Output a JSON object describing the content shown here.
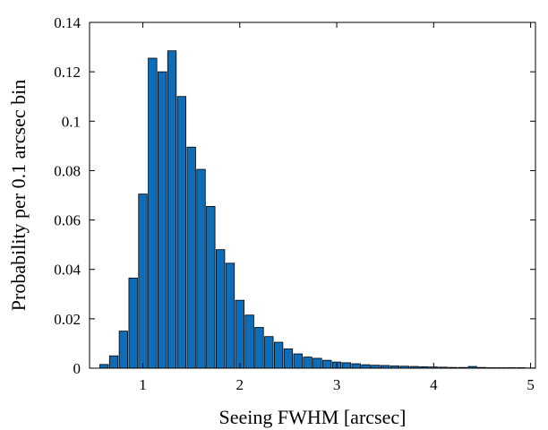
{
  "chart_data": {
    "type": "bar",
    "title": "",
    "xlabel": "Seeing FWHM [arcsec]",
    "ylabel": "Probability per 0.1 arcsec bin",
    "xlim": [
      0.45,
      5.05
    ],
    "ylim": [
      0,
      0.14
    ],
    "xticks": [
      1,
      2,
      3,
      4,
      5
    ],
    "yticks": [
      0,
      0.02,
      0.04,
      0.06,
      0.08,
      0.1,
      0.12,
      0.14
    ],
    "xtick_labels": [
      "1",
      "2",
      "3",
      "4",
      "5"
    ],
    "ytick_labels": [
      "0",
      "0.02",
      "0.04",
      "0.06",
      "0.08",
      "0.1",
      "0.12",
      "0.14"
    ],
    "bar_width": 0.088,
    "grid": false,
    "bar_color": "#0f6cb6",
    "x": [
      0.6,
      0.7,
      0.8,
      0.9,
      1.0,
      1.1,
      1.2,
      1.3,
      1.4,
      1.5,
      1.6,
      1.7,
      1.8,
      1.9,
      2.0,
      2.1,
      2.2,
      2.3,
      2.4,
      2.5,
      2.6,
      2.7,
      2.8,
      2.9,
      3.0,
      3.1,
      3.2,
      3.3,
      3.4,
      3.5,
      3.6,
      3.7,
      3.8,
      3.9,
      4.0,
      4.1,
      4.2,
      4.3,
      4.4,
      4.5,
      4.6,
      4.7,
      4.8,
      4.9,
      5.0
    ],
    "values": [
      0.0015,
      0.005,
      0.015,
      0.0365,
      0.0705,
      0.1255,
      0.12,
      0.1285,
      0.11,
      0.0895,
      0.0805,
      0.0655,
      0.048,
      0.0425,
      0.0275,
      0.0215,
      0.0165,
      0.0128,
      0.0105,
      0.0078,
      0.0058,
      0.0045,
      0.004,
      0.0032,
      0.0025,
      0.0022,
      0.0018,
      0.0014,
      0.0012,
      0.0011,
      0.0009,
      0.0008,
      0.0007,
      0.0006,
      0.0005,
      0.0004,
      0.0003,
      0.0003,
      0.0007,
      0.0003,
      0.0002,
      0.0002,
      0.0002,
      0.0002,
      0.0001
    ]
  }
}
